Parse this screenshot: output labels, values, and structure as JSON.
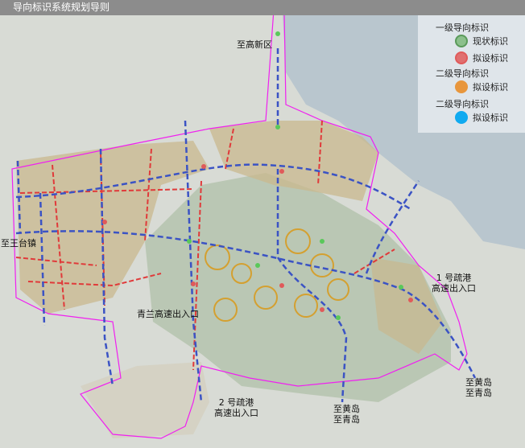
{
  "title": "导向标识系统规划导则",
  "legend": {
    "level1": "一级导向标识",
    "level1_existing": "现状标识",
    "level1_planned": "拟设标识",
    "level2a": "二级导向标识",
    "level2a_planned": "拟设标识",
    "level2b": "二级导向标识",
    "level2b_planned": "拟设标识"
  },
  "colors": {
    "existing": "#5a9a5a",
    "planned_red": "#e05a5a",
    "level2_orange": "#e8963c",
    "level2_blue": "#10aaf0",
    "arrow": "#3b53c4",
    "boundary": "#f020f0",
    "road_red": "#e03a3a"
  },
  "labels": {
    "gaoxin": "至高新区",
    "wangtai": "至王台镇",
    "qinglan": "青兰高速出入口",
    "port1_a": "1 号疏港",
    "port1_b": "高速出入口",
    "port2_a": "2 号疏港",
    "port2_b": "高速出入口",
    "south_a": "至黄岛",
    "south_b": "至青岛",
    "se_a": "至黄岛",
    "se_b": "至青岛"
  }
}
